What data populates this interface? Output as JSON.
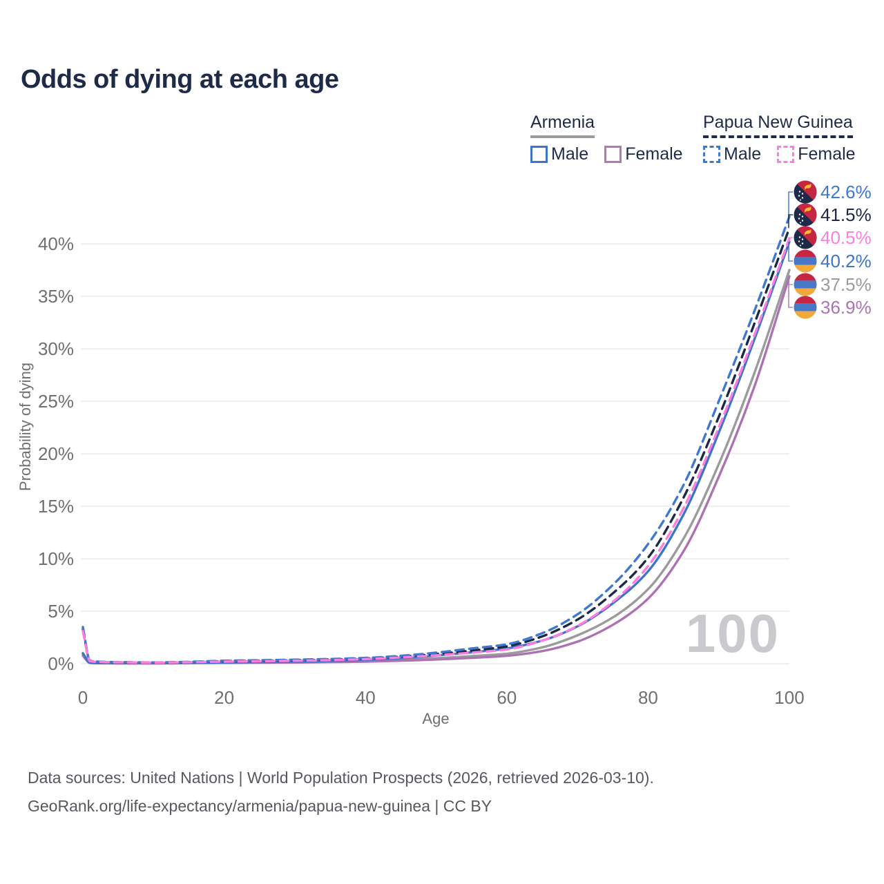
{
  "title": "Odds of dying at each age",
  "legend": {
    "groups": [
      {
        "name": "Armenia",
        "line_style": "solid",
        "underline_color": "#9B9B9B",
        "items": [
          {
            "label": "Male",
            "color": "#3D76C8"
          },
          {
            "label": "Female",
            "color": "#B279B6"
          }
        ]
      },
      {
        "name": "Papua New Guinea",
        "line_style": "dashed",
        "underline_color": "#1E2B47",
        "items": [
          {
            "label": "Male",
            "color": "#3F78CF"
          },
          {
            "label": "Female",
            "color": "#FF7DDE"
          }
        ]
      }
    ]
  },
  "chart_data": {
    "type": "line",
    "title": "Odds of dying at each age",
    "xlabel": "Age",
    "ylabel": "Probability of dying",
    "x_ticks": [
      0,
      20,
      40,
      60,
      80,
      100
    ],
    "y_ticks": [
      0,
      5,
      10,
      15,
      20,
      25,
      30,
      35,
      40
    ],
    "y_tick_suffix": "%",
    "xlim": [
      0,
      100
    ],
    "ylim": [
      0,
      44
    ],
    "grid": true,
    "grid_color": "#ECECEE",
    "axis_text_color": "#6F6F74",
    "watermark": "100",
    "ages": [
      0,
      1,
      2,
      5,
      10,
      15,
      20,
      25,
      30,
      35,
      40,
      45,
      50,
      55,
      60,
      65,
      70,
      75,
      80,
      85,
      90,
      95,
      100
    ],
    "series": [
      {
        "name": "Papua New Guinea — Male",
        "color": "#3F78CF",
        "dash": true,
        "flag": "papua-new-guinea",
        "end_label": "42.6%",
        "values": [
          3.5,
          0.3,
          0.2,
          0.15,
          0.12,
          0.18,
          0.28,
          0.33,
          0.38,
          0.45,
          0.55,
          0.75,
          1.05,
          1.45,
          1.85,
          2.9,
          4.7,
          7.5,
          11.4,
          17,
          25,
          33.5,
          42.6
        ]
      },
      {
        "name": "Papua New Guinea — Both sexes",
        "color": "#1B2945",
        "dash": true,
        "flag": "papua-new-guinea",
        "end_label": "41.5%",
        "values": [
          3.3,
          0.27,
          0.18,
          0.14,
          0.11,
          0.16,
          0.24,
          0.28,
          0.33,
          0.4,
          0.5,
          0.68,
          0.92,
          1.25,
          1.65,
          2.6,
          4.2,
          6.7,
          10.1,
          15.8,
          23.5,
          32.3,
          41.5
        ]
      },
      {
        "name": "Papua New Guinea — Female",
        "color": "#FF7DDE",
        "dash": true,
        "flag": "papua-new-guinea",
        "end_label": "40.5%",
        "values": [
          3.1,
          0.25,
          0.17,
          0.13,
          0.1,
          0.14,
          0.2,
          0.24,
          0.28,
          0.34,
          0.44,
          0.6,
          0.8,
          1.05,
          1.35,
          2.2,
          3.6,
          5.9,
          9.3,
          14.8,
          22.5,
          31.2,
          40.5
        ]
      },
      {
        "name": "Armenia — Male",
        "color": "#3D76C8",
        "dash": false,
        "flag": "armenia",
        "end_label": "40.2%",
        "values": [
          1,
          0.09,
          0.06,
          0.05,
          0.05,
          0.08,
          0.12,
          0.15,
          0.19,
          0.26,
          0.36,
          0.52,
          0.78,
          1.08,
          1.45,
          2.2,
          3.55,
          5.75,
          8.8,
          14.2,
          22,
          30.8,
          40.2
        ]
      },
      {
        "name": "Armenia — Both sexes",
        "color": "#9B9B9B",
        "dash": false,
        "flag": "armenia",
        "end_label": "37.5%",
        "values": [
          0.9,
          0.08,
          0.05,
          0.04,
          0.04,
          0.06,
          0.09,
          0.11,
          0.14,
          0.19,
          0.26,
          0.37,
          0.52,
          0.72,
          0.95,
          1.55,
          2.7,
          4.4,
          7.1,
          11.9,
          19,
          27.6,
          37.5
        ]
      },
      {
        "name": "Armenia — Female",
        "color": "#AC72B3",
        "dash": false,
        "flag": "armenia",
        "end_label": "36.9%",
        "values": [
          0.75,
          0.07,
          0.04,
          0.03,
          0.03,
          0.05,
          0.07,
          0.09,
          0.11,
          0.15,
          0.2,
          0.28,
          0.4,
          0.55,
          0.75,
          1.2,
          2.1,
          3.7,
          6.2,
          10.7,
          17.8,
          26.3,
          36.9
        ]
      }
    ]
  },
  "footer": {
    "line1": "Data sources: United Nations | World Population Prospects (2026, retrieved 2026-03-10).",
    "line2": "GeoRank.org/life-expectancy/armenia/papua-new-guinea | CC BY"
  }
}
